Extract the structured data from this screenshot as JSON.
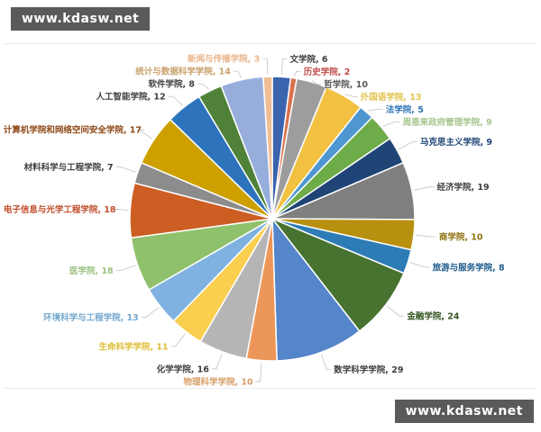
{
  "watermark": {
    "text": "www.kdasw.net",
    "bg": "#5a5a5a",
    "fg": "#ffffff"
  },
  "chart_data": {
    "type": "pie",
    "title": "",
    "total": 291,
    "start_angle_deg": 0,
    "direction": "clockwise",
    "legend_position": "none",
    "label_format": "{label}, {value}",
    "leader_line_color": "#c3c3c3",
    "slices": [
      {
        "label": "文学院",
        "value": 6,
        "color": "#3a64ae",
        "label_color": "#3f3f3f"
      },
      {
        "label": "历史学院",
        "value": 2,
        "color": "#d9714e",
        "label_color": "#be4b48"
      },
      {
        "label": "哲学院",
        "value": 10,
        "color": "#9d9d9d",
        "label_color": "#595959"
      },
      {
        "label": "外国语学院",
        "value": 13,
        "color": "#f2c142",
        "label_color": "#e3c44f"
      },
      {
        "label": "法学院",
        "value": 5,
        "color": "#4e97d1",
        "label_color": "#2e75b6"
      },
      {
        "label": "周恩来政府管理学院",
        "value": 9,
        "color": "#6eac49",
        "label_color": "#a6c58c"
      },
      {
        "label": "马克思主义学院",
        "value": 9,
        "color": "#1f4577",
        "label_color": "#1f4577"
      },
      {
        "label": "经济学院",
        "value": 19,
        "color": "#7f7f7f",
        "label_color": "#3f3f3f"
      },
      {
        "label": "商学院",
        "value": 10,
        "color": "#b8900f",
        "label_color": "#8f7412"
      },
      {
        "label": "旅游与服务学院",
        "value": 8,
        "color": "#2e7cb5",
        "label_color": "#1f5c8b"
      },
      {
        "label": "金融学院",
        "value": 24,
        "color": "#47722f",
        "label_color": "#375623"
      },
      {
        "label": "数学科学学院",
        "value": 29,
        "color": "#5585ca",
        "label_color": "#3f3f3f"
      },
      {
        "label": "物理科学学院",
        "value": 10,
        "color": "#ec9759",
        "label_color": "#d8a06a"
      },
      {
        "label": "化学学院",
        "value": 16,
        "color": "#b5b5b5",
        "label_color": "#3f3f3f"
      },
      {
        "label": "生命科学学院",
        "value": 11,
        "color": "#facf4f",
        "label_color": "#dfbe3a"
      },
      {
        "label": "环境科学与工程学院",
        "value": 13,
        "color": "#7fb2e0",
        "label_color": "#76a9cf"
      },
      {
        "label": "医学院",
        "value": 18,
        "color": "#8fc06b",
        "label_color": "#9dc284"
      },
      {
        "label": "电子信息与光学工程学院",
        "value": 18,
        "color": "#cc5e24",
        "label_color": "#c0502e"
      },
      {
        "label": "材料科学与工程学院",
        "value": 7,
        "color": "#8c8c8c",
        "label_color": "#3f3f3f"
      },
      {
        "label": "计算机学院和网络空间安全学院",
        "value": 17,
        "color": "#cda000",
        "label_color": "#8e4a18"
      },
      {
        "label": "人工智能学院",
        "value": 12,
        "color": "#2d74bc",
        "label_color": "#3f3f3f"
      },
      {
        "label": "软件学院",
        "value": 8,
        "color": "#4f8139",
        "label_color": "#3f3f3f"
      },
      {
        "label": "统计与数据科学学院",
        "value": 14,
        "color": "#97aedc",
        "label_color": "#c9a26b"
      },
      {
        "label": "新闻与传播学院",
        "value": 3,
        "color": "#f0be93",
        "label_color": "#ebb68c"
      }
    ]
  }
}
